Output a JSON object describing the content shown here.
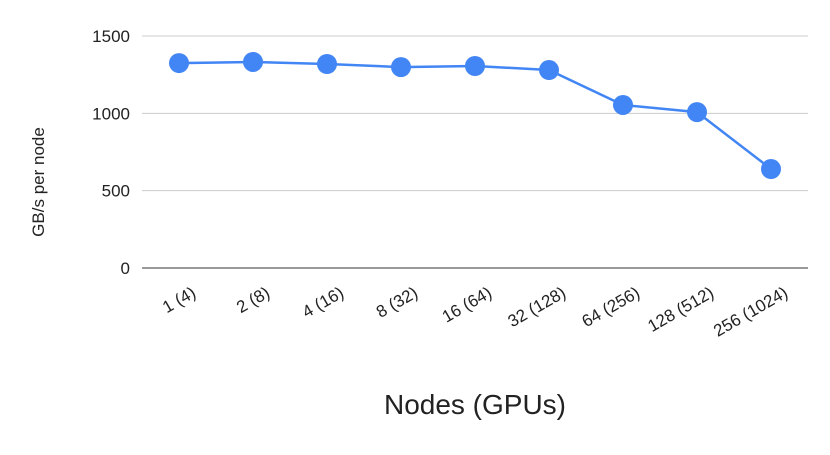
{
  "chart_data": {
    "type": "line",
    "x_label": "Nodes (GPUs)",
    "y_label": "GB/s per node",
    "categories": [
      "1 (4)",
      "2 (8)",
      "4 (16)",
      "8 (32)",
      "16 (64)",
      "32 (128)",
      "64 (256)",
      "128 (512)",
      "256 (1024)"
    ],
    "values": [
      1325,
      1332,
      1319,
      1299,
      1306,
      1280,
      1054,
      1008,
      640
    ],
    "color": "#4285f4",
    "ylim": [
      0,
      1500
    ],
    "yticks": [
      0,
      500,
      1000,
      1500
    ],
    "grid": true
  }
}
